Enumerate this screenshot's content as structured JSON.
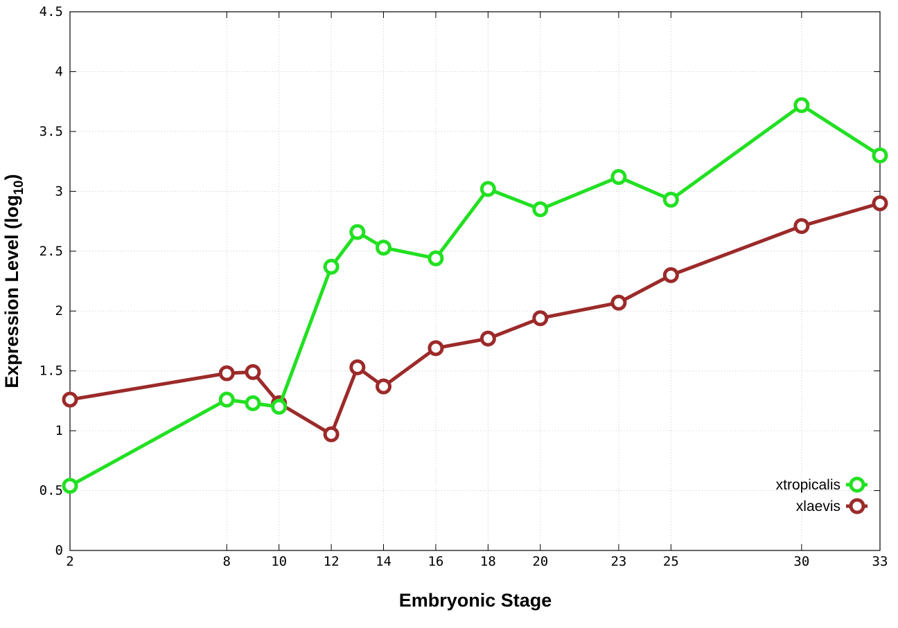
{
  "chart_data": {
    "type": "line",
    "xlabel": "Embryonic Stage",
    "ylabel_main": "Expression Level (log",
    "ylabel_sub": "10",
    "ylabel_close": ")",
    "x": [
      2,
      8,
      9,
      10,
      12,
      13,
      14,
      16,
      18,
      20,
      23,
      25,
      30,
      33
    ],
    "xticks": [
      2,
      8,
      10,
      12,
      14,
      16,
      18,
      20,
      23,
      25,
      30,
      33
    ],
    "xtick_labels": [
      "2",
      "8",
      "10",
      "12",
      "14",
      "16",
      "18",
      "20",
      "23",
      "25",
      "30",
      "33"
    ],
    "xlim": [
      2,
      33
    ],
    "yticks": [
      0,
      0.5,
      1,
      1.5,
      2,
      2.5,
      3,
      3.5,
      4,
      4.5
    ],
    "ytick_labels": [
      "0",
      "0.5",
      "1",
      "1.5",
      "2",
      "2.5",
      "3",
      "3.5",
      "4",
      "4.5"
    ],
    "ylim": [
      0,
      4.5
    ],
    "grid": true,
    "legend_position": "bottom-right",
    "series": [
      {
        "name": "xtropicalis",
        "color": "#22e022",
        "values": [
          0.54,
          1.26,
          1.23,
          1.2,
          2.37,
          2.66,
          2.53,
          2.44,
          3.02,
          2.85,
          3.12,
          2.93,
          3.72,
          3.3
        ]
      },
      {
        "name": "xlaevis",
        "color": "#9c2a2a",
        "values": [
          1.26,
          1.48,
          1.49,
          1.23,
          0.97,
          1.53,
          1.37,
          1.69,
          1.77,
          1.94,
          2.07,
          2.3,
          2.71,
          2.9
        ]
      }
    ]
  }
}
